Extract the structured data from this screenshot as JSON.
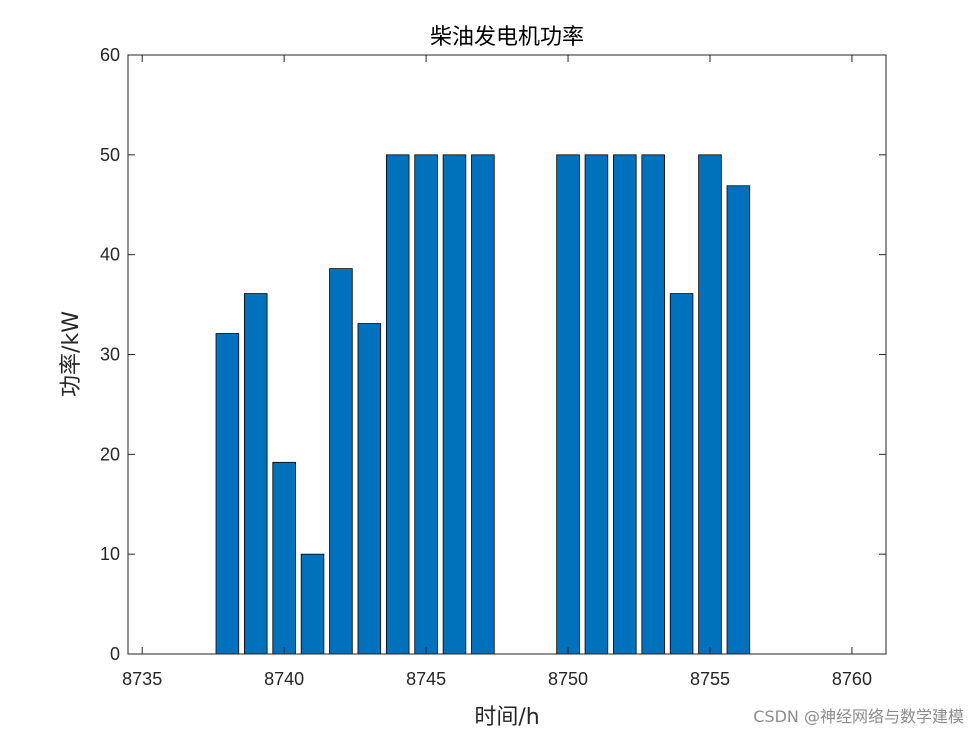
{
  "chart_data": {
    "type": "bar",
    "title": "柴油发电机功率",
    "xlabel": "时间/h",
    "ylabel": "功率/kW",
    "xlim": [
      8734.5,
      8761.2
    ],
    "ylim": [
      0,
      60
    ],
    "xticks": [
      8735,
      8740,
      8745,
      8750,
      8755,
      8760
    ],
    "yticks": [
      0,
      10,
      20,
      30,
      40,
      50,
      60
    ],
    "grid": false,
    "bar_color": "#0072BD",
    "x": [
      8738,
      8739,
      8740,
      8741,
      8742,
      8743,
      8744,
      8745,
      8746,
      8747,
      8748,
      8749,
      8750,
      8751,
      8752,
      8753,
      8754,
      8755,
      8756
    ],
    "values": [
      32.1,
      36.1,
      19.2,
      10.0,
      38.6,
      33.1,
      50,
      50,
      50,
      50,
      0,
      0,
      50,
      50,
      50,
      50,
      36.1,
      50,
      46.9
    ]
  },
  "watermark": "CSDN @神经网络与数学建模"
}
